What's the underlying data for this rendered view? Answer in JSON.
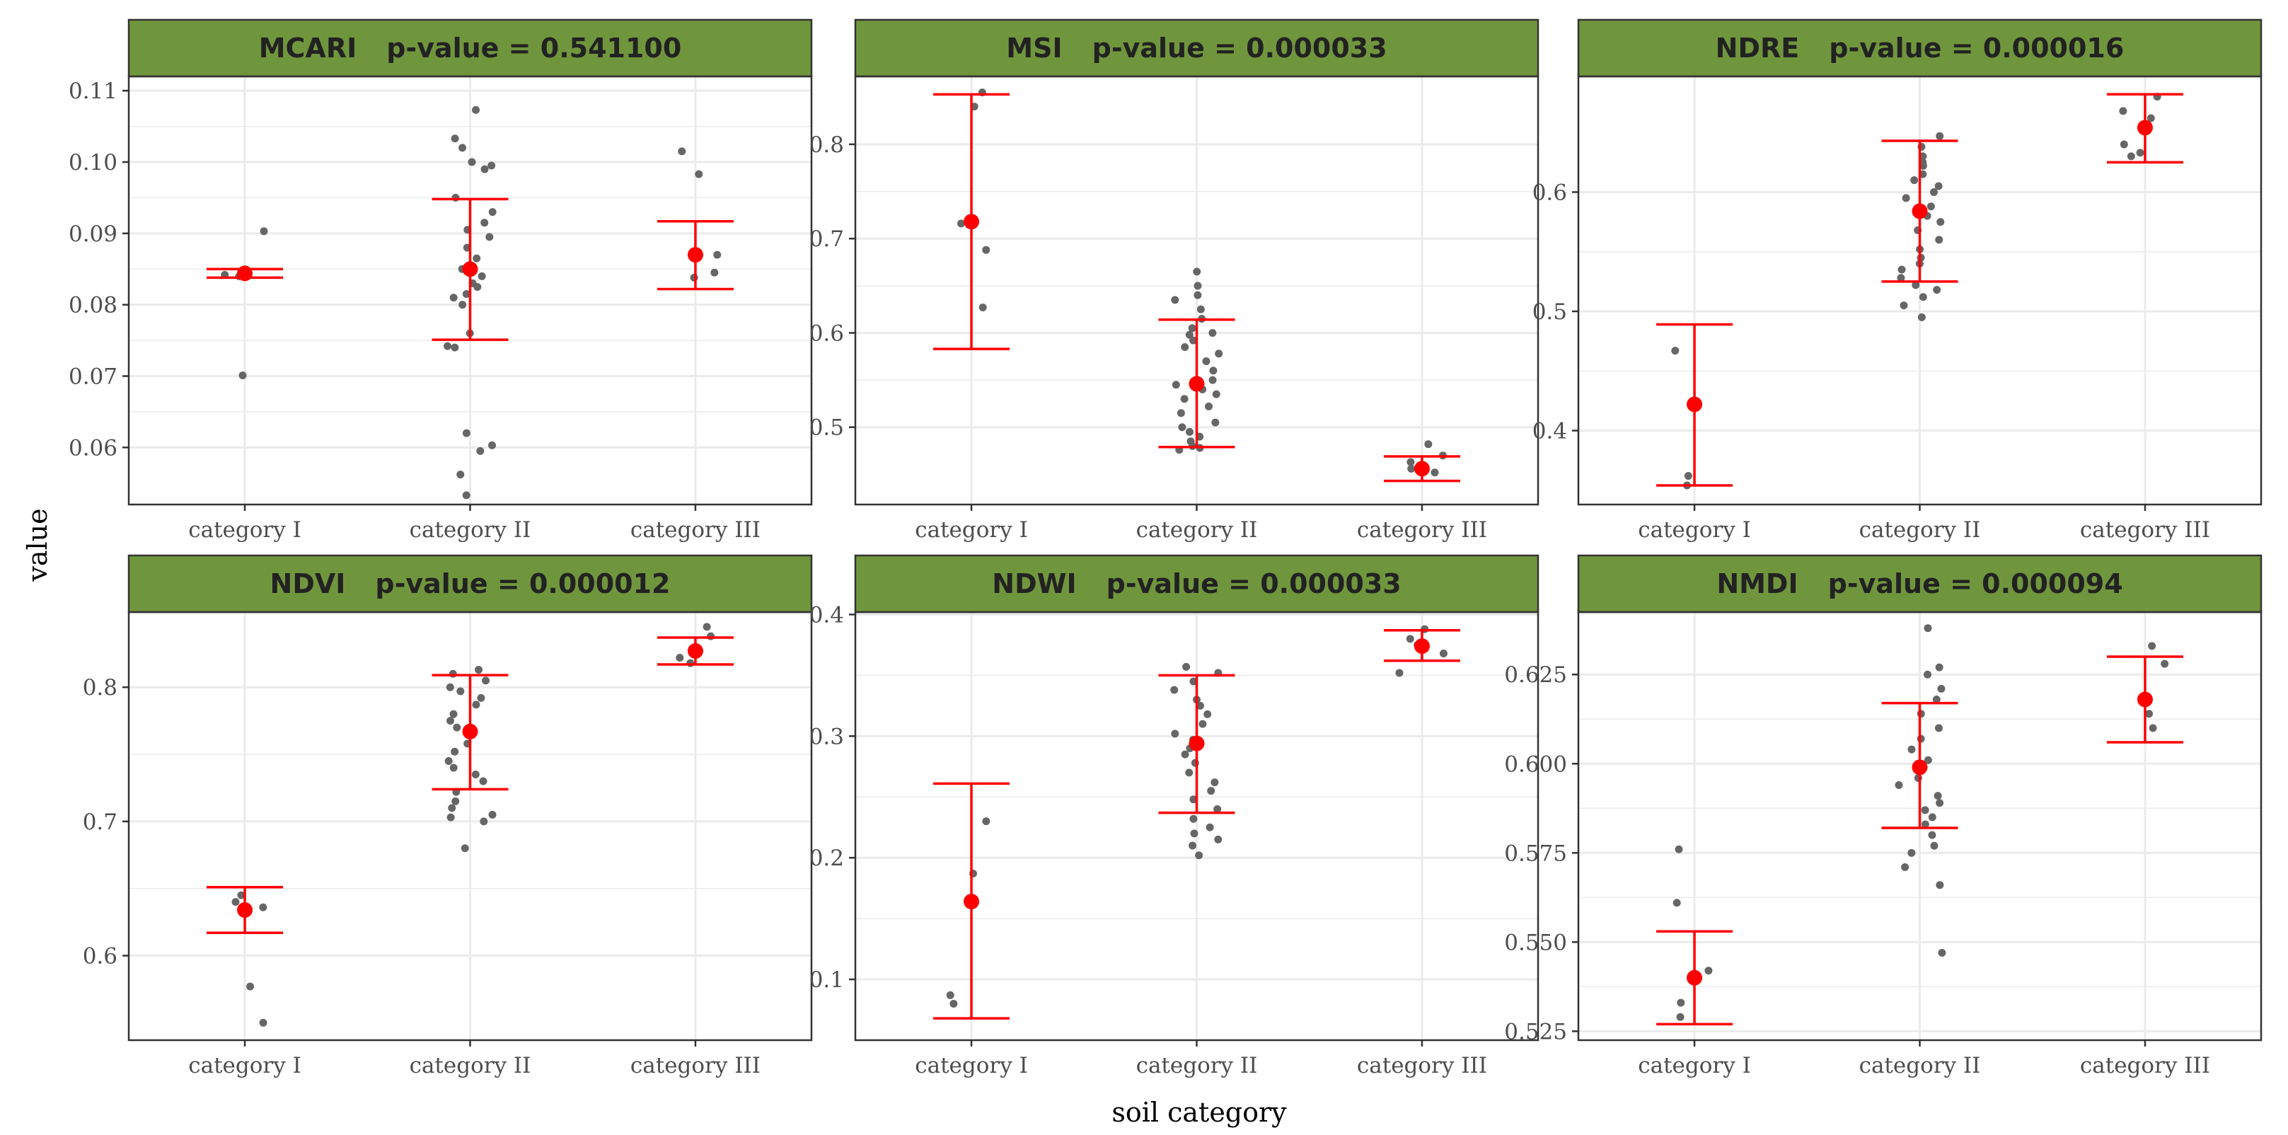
{
  "figure": {
    "ylabel": "value",
    "xlabel": "soil category",
    "colors": {
      "strip": "#70963d",
      "panel_border": "#333333",
      "grid": "#ebebeb",
      "point": "#666666",
      "mean": "#ff0000",
      "text": "#222222"
    }
  },
  "chart_data": [
    {
      "type": "scatter",
      "title": "MCARI",
      "pvalue_text": "p-value = 0.541100",
      "categories": [
        "category I",
        "category II",
        "category III"
      ],
      "ylim": [
        0.052,
        0.112
      ],
      "yticks": [
        0.06,
        0.07,
        0.08,
        0.09,
        0.1,
        0.11
      ],
      "ytick_labels": [
        "0.06",
        "0.07",
        "0.08",
        "0.09",
        "0.10",
        "0.11"
      ],
      "summary": [
        {
          "mean": 0.0844,
          "lower": 0.0838,
          "upper": 0.085
        },
        {
          "mean": 0.085,
          "lower": 0.0751,
          "upper": 0.0948
        },
        {
          "mean": 0.087,
          "lower": 0.0822,
          "upper": 0.0917
        }
      ],
      "points": [
        {
          "cat": 0,
          "y": 0.0903
        },
        {
          "cat": 0,
          "y": 0.0842
        },
        {
          "cat": 0,
          "y": 0.084
        },
        {
          "cat": 0,
          "y": 0.084
        },
        {
          "cat": 0,
          "y": 0.0701
        },
        {
          "cat": 1,
          "y": 0.1073
        },
        {
          "cat": 1,
          "y": 0.1033
        },
        {
          "cat": 1,
          "y": 0.102
        },
        {
          "cat": 1,
          "y": 0.1
        },
        {
          "cat": 1,
          "y": 0.0995
        },
        {
          "cat": 1,
          "y": 0.099
        },
        {
          "cat": 1,
          "y": 0.095
        },
        {
          "cat": 1,
          "y": 0.093
        },
        {
          "cat": 1,
          "y": 0.0915
        },
        {
          "cat": 1,
          "y": 0.0905
        },
        {
          "cat": 1,
          "y": 0.0895
        },
        {
          "cat": 1,
          "y": 0.088
        },
        {
          "cat": 1,
          "y": 0.0865
        },
        {
          "cat": 1,
          "y": 0.085
        },
        {
          "cat": 1,
          "y": 0.084
        },
        {
          "cat": 1,
          "y": 0.083
        },
        {
          "cat": 1,
          "y": 0.0825
        },
        {
          "cat": 1,
          "y": 0.0815
        },
        {
          "cat": 1,
          "y": 0.081
        },
        {
          "cat": 1,
          "y": 0.08
        },
        {
          "cat": 1,
          "y": 0.076
        },
        {
          "cat": 1,
          "y": 0.0742
        },
        {
          "cat": 1,
          "y": 0.074
        },
        {
          "cat": 1,
          "y": 0.062
        },
        {
          "cat": 1,
          "y": 0.0603
        },
        {
          "cat": 1,
          "y": 0.0595
        },
        {
          "cat": 1,
          "y": 0.0562
        },
        {
          "cat": 1,
          "y": 0.0533
        },
        {
          "cat": 2,
          "y": 0.1015
        },
        {
          "cat": 2,
          "y": 0.0983
        },
        {
          "cat": 2,
          "y": 0.087
        },
        {
          "cat": 2,
          "y": 0.0845
        },
        {
          "cat": 2,
          "y": 0.0838
        }
      ]
    },
    {
      "type": "scatter",
      "title": "MSI",
      "pvalue_text": "p-value = 0.000033",
      "categories": [
        "category I",
        "category II",
        "category III"
      ],
      "ylim": [
        0.418,
        0.872
      ],
      "yticks": [
        0.5,
        0.6,
        0.7,
        0.8
      ],
      "ytick_labels": [
        "0.5",
        "0.6",
        "0.7",
        "0.8"
      ],
      "summary": [
        {
          "mean": 0.718,
          "lower": 0.583,
          "upper": 0.853
        },
        {
          "mean": 0.546,
          "lower": 0.479,
          "upper": 0.614
        },
        {
          "mean": 0.456,
          "lower": 0.443,
          "upper": 0.469
        }
      ],
      "points": [
        {
          "cat": 0,
          "y": 0.855
        },
        {
          "cat": 0,
          "y": 0.84
        },
        {
          "cat": 0,
          "y": 0.718
        },
        {
          "cat": 0,
          "y": 0.716
        },
        {
          "cat": 0,
          "y": 0.688
        },
        {
          "cat": 0,
          "y": 0.627
        },
        {
          "cat": 1,
          "y": 0.665
        },
        {
          "cat": 1,
          "y": 0.65
        },
        {
          "cat": 1,
          "y": 0.64
        },
        {
          "cat": 1,
          "y": 0.635
        },
        {
          "cat": 1,
          "y": 0.625
        },
        {
          "cat": 1,
          "y": 0.615
        },
        {
          "cat": 1,
          "y": 0.605
        },
        {
          "cat": 1,
          "y": 0.6
        },
        {
          "cat": 1,
          "y": 0.598
        },
        {
          "cat": 1,
          "y": 0.592
        },
        {
          "cat": 1,
          "y": 0.585
        },
        {
          "cat": 1,
          "y": 0.578
        },
        {
          "cat": 1,
          "y": 0.57
        },
        {
          "cat": 1,
          "y": 0.56
        },
        {
          "cat": 1,
          "y": 0.55
        },
        {
          "cat": 1,
          "y": 0.545
        },
        {
          "cat": 1,
          "y": 0.54
        },
        {
          "cat": 1,
          "y": 0.535
        },
        {
          "cat": 1,
          "y": 0.53
        },
        {
          "cat": 1,
          "y": 0.522
        },
        {
          "cat": 1,
          "y": 0.515
        },
        {
          "cat": 1,
          "y": 0.505
        },
        {
          "cat": 1,
          "y": 0.5
        },
        {
          "cat": 1,
          "y": 0.495
        },
        {
          "cat": 1,
          "y": 0.49
        },
        {
          "cat": 1,
          "y": 0.485
        },
        {
          "cat": 1,
          "y": 0.48
        },
        {
          "cat": 1,
          "y": 0.478
        },
        {
          "cat": 1,
          "y": 0.476
        },
        {
          "cat": 2,
          "y": 0.482
        },
        {
          "cat": 2,
          "y": 0.47
        },
        {
          "cat": 2,
          "y": 0.463
        },
        {
          "cat": 2,
          "y": 0.456
        },
        {
          "cat": 2,
          "y": 0.452
        }
      ]
    },
    {
      "type": "scatter",
      "title": "NDRE",
      "pvalue_text": "p-value = 0.000016",
      "categories": [
        "category I",
        "category II",
        "category III"
      ],
      "ylim": [
        0.338,
        0.697
      ],
      "yticks": [
        0.4,
        0.5,
        0.6
      ],
      "ytick_labels": [
        "0.4",
        "0.5",
        "0.6"
      ],
      "summary": [
        {
          "mean": 0.422,
          "lower": 0.354,
          "upper": 0.489
        },
        {
          "mean": 0.584,
          "lower": 0.525,
          "upper": 0.643
        },
        {
          "mean": 0.654,
          "lower": 0.625,
          "upper": 0.682
        }
      ],
      "points": [
        {
          "cat": 0,
          "y": 0.467
        },
        {
          "cat": 0,
          "y": 0.362
        },
        {
          "cat": 0,
          "y": 0.354
        },
        {
          "cat": 1,
          "y": 0.647
        },
        {
          "cat": 1,
          "y": 0.638
        },
        {
          "cat": 1,
          "y": 0.63
        },
        {
          "cat": 1,
          "y": 0.625
        },
        {
          "cat": 1,
          "y": 0.622
        },
        {
          "cat": 1,
          "y": 0.615
        },
        {
          "cat": 1,
          "y": 0.61
        },
        {
          "cat": 1,
          "y": 0.605
        },
        {
          "cat": 1,
          "y": 0.6
        },
        {
          "cat": 1,
          "y": 0.595
        },
        {
          "cat": 1,
          "y": 0.588
        },
        {
          "cat": 1,
          "y": 0.58
        },
        {
          "cat": 1,
          "y": 0.575
        },
        {
          "cat": 1,
          "y": 0.568
        },
        {
          "cat": 1,
          "y": 0.56
        },
        {
          "cat": 1,
          "y": 0.552
        },
        {
          "cat": 1,
          "y": 0.545
        },
        {
          "cat": 1,
          "y": 0.54
        },
        {
          "cat": 1,
          "y": 0.535
        },
        {
          "cat": 1,
          "y": 0.528
        },
        {
          "cat": 1,
          "y": 0.522
        },
        {
          "cat": 1,
          "y": 0.518
        },
        {
          "cat": 1,
          "y": 0.512
        },
        {
          "cat": 1,
          "y": 0.505
        },
        {
          "cat": 1,
          "y": 0.495
        },
        {
          "cat": 2,
          "y": 0.68
        },
        {
          "cat": 2,
          "y": 0.668
        },
        {
          "cat": 2,
          "y": 0.662
        },
        {
          "cat": 2,
          "y": 0.64
        },
        {
          "cat": 2,
          "y": 0.633
        },
        {
          "cat": 2,
          "y": 0.63
        }
      ]
    },
    {
      "type": "scatter",
      "title": "NDVI",
      "pvalue_text": "p-value = 0.000012",
      "categories": [
        "category I",
        "category II",
        "category III"
      ],
      "ylim": [
        0.537,
        0.856
      ],
      "yticks": [
        0.6,
        0.7,
        0.8
      ],
      "ytick_labels": [
        "0.6",
        "0.7",
        "0.8"
      ],
      "summary": [
        {
          "mean": 0.634,
          "lower": 0.617,
          "upper": 0.651
        },
        {
          "mean": 0.767,
          "lower": 0.724,
          "upper": 0.809
        },
        {
          "mean": 0.827,
          "lower": 0.817,
          "upper": 0.837
        }
      ],
      "points": [
        {
          "cat": 0,
          "y": 0.645
        },
        {
          "cat": 0,
          "y": 0.64
        },
        {
          "cat": 0,
          "y": 0.636
        },
        {
          "cat": 0,
          "y": 0.577
        },
        {
          "cat": 0,
          "y": 0.55
        },
        {
          "cat": 1,
          "y": 0.813
        },
        {
          "cat": 1,
          "y": 0.81
        },
        {
          "cat": 1,
          "y": 0.805
        },
        {
          "cat": 1,
          "y": 0.8
        },
        {
          "cat": 1,
          "y": 0.797
        },
        {
          "cat": 1,
          "y": 0.792
        },
        {
          "cat": 1,
          "y": 0.787
        },
        {
          "cat": 1,
          "y": 0.78
        },
        {
          "cat": 1,
          "y": 0.775
        },
        {
          "cat": 1,
          "y": 0.77
        },
        {
          "cat": 1,
          "y": 0.765
        },
        {
          "cat": 1,
          "y": 0.758
        },
        {
          "cat": 1,
          "y": 0.752
        },
        {
          "cat": 1,
          "y": 0.745
        },
        {
          "cat": 1,
          "y": 0.74
        },
        {
          "cat": 1,
          "y": 0.735
        },
        {
          "cat": 1,
          "y": 0.73
        },
        {
          "cat": 1,
          "y": 0.722
        },
        {
          "cat": 1,
          "y": 0.715
        },
        {
          "cat": 1,
          "y": 0.71
        },
        {
          "cat": 1,
          "y": 0.705
        },
        {
          "cat": 1,
          "y": 0.703
        },
        {
          "cat": 1,
          "y": 0.7
        },
        {
          "cat": 1,
          "y": 0.68
        },
        {
          "cat": 2,
          "y": 0.845
        },
        {
          "cat": 2,
          "y": 0.838
        },
        {
          "cat": 2,
          "y": 0.83
        },
        {
          "cat": 2,
          "y": 0.822
        },
        {
          "cat": 2,
          "y": 0.818
        }
      ]
    },
    {
      "type": "scatter",
      "title": "NDWI",
      "pvalue_text": "p-value = 0.000033",
      "categories": [
        "category I",
        "category II",
        "category III"
      ],
      "ylim": [
        0.05,
        0.402
      ],
      "yticks": [
        0.1,
        0.2,
        0.3,
        0.4
      ],
      "ytick_labels": [
        "0.1",
        "0.2",
        "0.3",
        "0.4"
      ],
      "summary": [
        {
          "mean": 0.164,
          "lower": 0.068,
          "upper": 0.261
        },
        {
          "mean": 0.294,
          "lower": 0.237,
          "upper": 0.35
        },
        {
          "mean": 0.374,
          "lower": 0.362,
          "upper": 0.387
        }
      ],
      "points": [
        {
          "cat": 0,
          "y": 0.23
        },
        {
          "cat": 0,
          "y": 0.187
        },
        {
          "cat": 0,
          "y": 0.087
        },
        {
          "cat": 0,
          "y": 0.08
        },
        {
          "cat": 1,
          "y": 0.357
        },
        {
          "cat": 1,
          "y": 0.352
        },
        {
          "cat": 1,
          "y": 0.345
        },
        {
          "cat": 1,
          "y": 0.338
        },
        {
          "cat": 1,
          "y": 0.33
        },
        {
          "cat": 1,
          "y": 0.325
        },
        {
          "cat": 1,
          "y": 0.318
        },
        {
          "cat": 1,
          "y": 0.31
        },
        {
          "cat": 1,
          "y": 0.302
        },
        {
          "cat": 1,
          "y": 0.297
        },
        {
          "cat": 1,
          "y": 0.29
        },
        {
          "cat": 1,
          "y": 0.285
        },
        {
          "cat": 1,
          "y": 0.278
        },
        {
          "cat": 1,
          "y": 0.27
        },
        {
          "cat": 1,
          "y": 0.262
        },
        {
          "cat": 1,
          "y": 0.255
        },
        {
          "cat": 1,
          "y": 0.248
        },
        {
          "cat": 1,
          "y": 0.24
        },
        {
          "cat": 1,
          "y": 0.232
        },
        {
          "cat": 1,
          "y": 0.225
        },
        {
          "cat": 1,
          "y": 0.22
        },
        {
          "cat": 1,
          "y": 0.215
        },
        {
          "cat": 1,
          "y": 0.21
        },
        {
          "cat": 1,
          "y": 0.202
        },
        {
          "cat": 2,
          "y": 0.388
        },
        {
          "cat": 2,
          "y": 0.38
        },
        {
          "cat": 2,
          "y": 0.375
        },
        {
          "cat": 2,
          "y": 0.368
        },
        {
          "cat": 2,
          "y": 0.352
        }
      ]
    },
    {
      "type": "scatter",
      "title": "NMDI",
      "pvalue_text": "p-value = 0.000094",
      "categories": [
        "category I",
        "category II",
        "category III"
      ],
      "ylim": [
        0.5225,
        0.6425
      ],
      "yticks": [
        0.525,
        0.55,
        0.575,
        0.6,
        0.625
      ],
      "ytick_labels": [
        "0.525",
        "0.550",
        "0.575",
        "0.600",
        "0.625"
      ],
      "summary": [
        {
          "mean": 0.54,
          "lower": 0.527,
          "upper": 0.553
        },
        {
          "mean": 0.599,
          "lower": 0.582,
          "upper": 0.617
        },
        {
          "mean": 0.618,
          "lower": 0.606,
          "upper": 0.63
        }
      ],
      "points": [
        {
          "cat": 0,
          "y": 0.576
        },
        {
          "cat": 0,
          "y": 0.561
        },
        {
          "cat": 0,
          "y": 0.542
        },
        {
          "cat": 0,
          "y": 0.533
        },
        {
          "cat": 0,
          "y": 0.529
        },
        {
          "cat": 1,
          "y": 0.638
        },
        {
          "cat": 1,
          "y": 0.627
        },
        {
          "cat": 1,
          "y": 0.625
        },
        {
          "cat": 1,
          "y": 0.621
        },
        {
          "cat": 1,
          "y": 0.618
        },
        {
          "cat": 1,
          "y": 0.614
        },
        {
          "cat": 1,
          "y": 0.61
        },
        {
          "cat": 1,
          "y": 0.607
        },
        {
          "cat": 1,
          "y": 0.604
        },
        {
          "cat": 1,
          "y": 0.601
        },
        {
          "cat": 1,
          "y": 0.598
        },
        {
          "cat": 1,
          "y": 0.596
        },
        {
          "cat": 1,
          "y": 0.594
        },
        {
          "cat": 1,
          "y": 0.591
        },
        {
          "cat": 1,
          "y": 0.589
        },
        {
          "cat": 1,
          "y": 0.587
        },
        {
          "cat": 1,
          "y": 0.585
        },
        {
          "cat": 1,
          "y": 0.583
        },
        {
          "cat": 1,
          "y": 0.58
        },
        {
          "cat": 1,
          "y": 0.577
        },
        {
          "cat": 1,
          "y": 0.575
        },
        {
          "cat": 1,
          "y": 0.571
        },
        {
          "cat": 1,
          "y": 0.566
        },
        {
          "cat": 1,
          "y": 0.547
        },
        {
          "cat": 2,
          "y": 0.633
        },
        {
          "cat": 2,
          "y": 0.628
        },
        {
          "cat": 2,
          "y": 0.614
        },
        {
          "cat": 2,
          "y": 0.61
        }
      ]
    }
  ]
}
